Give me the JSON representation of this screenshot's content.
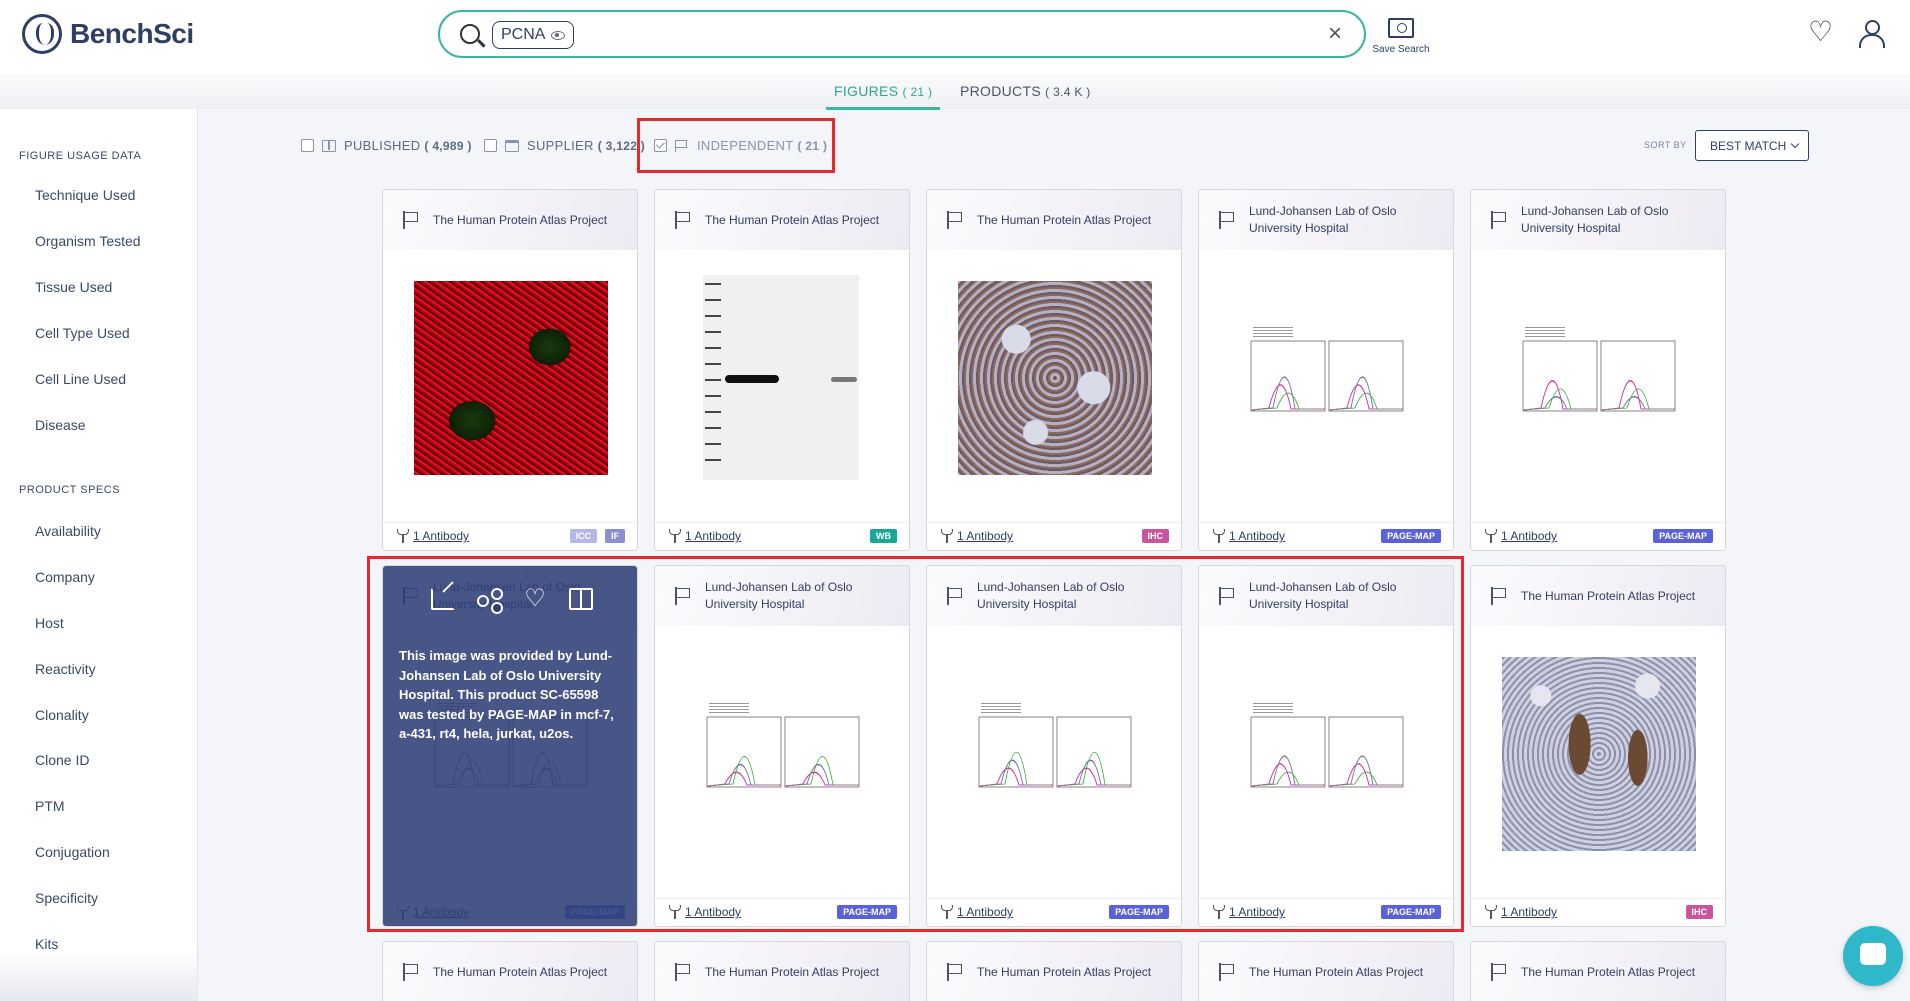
{
  "app": {
    "name": "BenchSci"
  },
  "search": {
    "chip": "PCNA",
    "clear": "×",
    "save_label": "Save Search"
  },
  "tabs": [
    {
      "label": "FIGURES",
      "count": "( 21 )"
    },
    {
      "label": "PRODUCTS",
      "count": "( 3.4 K )"
    }
  ],
  "sidebar": {
    "figure_usage_title": "FIGURE USAGE DATA",
    "figure_usage": [
      "Technique Used",
      "Organism Tested",
      "Tissue Used",
      "Cell Type Used",
      "Cell Line Used",
      "Disease"
    ],
    "product_specs_title": "PRODUCT SPECS",
    "product_specs": [
      "Availability",
      "Company",
      "Host",
      "Reactivity",
      "Clonality",
      "Clone ID",
      "PTM",
      "Conjugation",
      "Specificity",
      "Kits"
    ]
  },
  "filters": [
    {
      "label": "PUBLISHED",
      "count": "( 4,989 )",
      "checked": false
    },
    {
      "label": "SUPPLIER",
      "count": "( 3,122 )",
      "checked": false
    },
    {
      "label": "INDEPENDENT",
      "count": "( 21 )",
      "checked": true
    }
  ],
  "sort": {
    "label": "SORT BY",
    "value": "BEST MATCH"
  },
  "cards": [
    {
      "source": "The Human Protein Atlas Project",
      "antibody": "1 Antibody",
      "tags": [
        "ICC",
        "IF"
      ],
      "image": "icc"
    },
    {
      "source": "The Human Protein Atlas Project",
      "antibody": "1 Antibody",
      "tags": [
        "WB"
      ],
      "image": "wb"
    },
    {
      "source": "The Human Protein Atlas Project",
      "antibody": "1 Antibody",
      "tags": [
        "IHC"
      ],
      "image": "ihc"
    },
    {
      "source": "Lund-Johansen Lab of Oslo University Hospital",
      "antibody": "1 Antibody",
      "tags": [
        "PAGE-MAP"
      ],
      "image": "plot"
    },
    {
      "source": "Lund-Johansen Lab of Oslo University Hospital",
      "antibody": "1 Antibody",
      "tags": [
        "PAGE-MAP"
      ],
      "image": "plot"
    },
    {
      "source": "Lund-Johansen Lab of Oslo University Hospital",
      "antibody": "1 Antibody",
      "tags": [
        "PAGE-MAP"
      ],
      "image": "plot",
      "hover": true
    },
    {
      "source": "Lund-Johansen Lab of Oslo University Hospital",
      "antibody": "1 Antibody",
      "tags": [
        "PAGE-MAP"
      ],
      "image": "plot"
    },
    {
      "source": "Lund-Johansen Lab of Oslo University Hospital",
      "antibody": "1 Antibody",
      "tags": [
        "PAGE-MAP"
      ],
      "image": "plot"
    },
    {
      "source": "Lund-Johansen Lab of Oslo University Hospital",
      "antibody": "1 Antibody",
      "tags": [
        "PAGE-MAP"
      ],
      "image": "plot"
    },
    {
      "source": "The Human Protein Atlas Project",
      "antibody": "1 Antibody",
      "tags": [
        "IHC"
      ],
      "image": "ihc2"
    },
    {
      "source": "The Human Protein Atlas Project"
    },
    {
      "source": "The Human Protein Atlas Project"
    },
    {
      "source": "The Human Protein Atlas Project"
    },
    {
      "source": "The Human Protein Atlas Project"
    },
    {
      "source": "The Human Protein Atlas Project"
    }
  ],
  "overlay": {
    "text": "This image was provided by Lund-Johansen Lab of Oslo University Hospital. This product SC-65598 was tested by PAGE-MAP in mcf-7, a-431, rt4, hela, jurkat, u2os."
  },
  "colors": {
    "accent": "#3ab4a5",
    "brand": "#2f3f63",
    "highlight": "#e8282b",
    "page_map_tag": "#5b62d8",
    "ihc_tag": "#c9559c",
    "wb_tag": "#17a899"
  }
}
